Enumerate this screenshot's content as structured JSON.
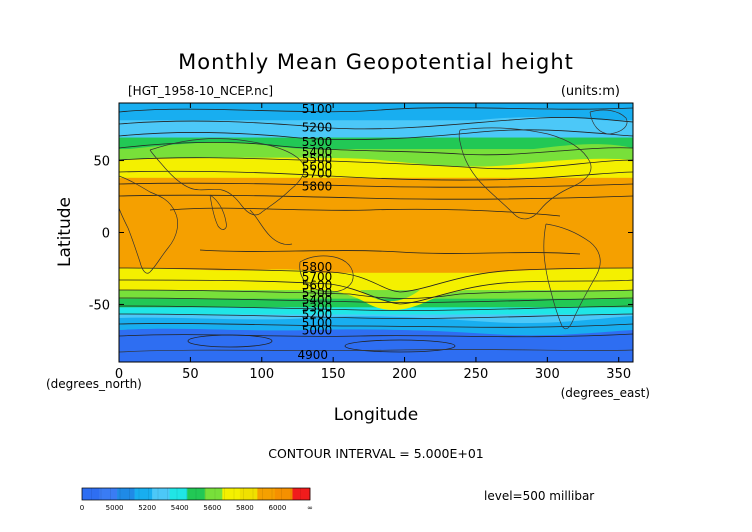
{
  "title": "Monthly Mean Geopotential height",
  "file_label": "[HGT_1958-10_NCEP.nc]",
  "units_label": "(units:m)",
  "x_axis": {
    "label": "Longitude",
    "ticks": [
      "0",
      "50",
      "100",
      "150",
      "200",
      "250",
      "300",
      "350"
    ],
    "tick_values": [
      0,
      50,
      100,
      150,
      200,
      250,
      300,
      350
    ],
    "range": [
      0,
      360
    ],
    "unit_note": "(degrees_east)"
  },
  "y_axis": {
    "label": "Latitude",
    "ticks": [
      "50",
      "0",
      "-50"
    ],
    "tick_values": [
      50,
      0,
      -50
    ],
    "range": [
      -90,
      90
    ],
    "unit_note": "(degrees_north)"
  },
  "contour_interval": "CONTOUR INTERVAL = 5.000E+01",
  "level": "level=500 millibar",
  "colors": {
    "c4900": "#2e6ef2",
    "c5000": "#1f8ae6",
    "c5100": "#18aef0",
    "c5200": "#4cc8f8",
    "c5300": "#20e6e6",
    "c5400": "#22c855",
    "c5500": "#78e03a",
    "c5600": "#f4f000",
    "c5700": "#f0e000",
    "c5800": "#f5a000",
    "c6000": "#f01c1c"
  },
  "colorbar": {
    "labels": [
      "0",
      "5000",
      "5200",
      "5400",
      "5600",
      "5800",
      "6000",
      "∞"
    ],
    "segments": [
      {
        "from": 0,
        "to": 4950,
        "color": "#2e6ef2"
      },
      {
        "from": 4950,
        "to": 5000,
        "color": "#3a7cf4"
      },
      {
        "from": 5000,
        "to": 5100,
        "color": "#1f8ae6"
      },
      {
        "from": 5100,
        "to": 5200,
        "color": "#18aef0"
      },
      {
        "from": 5200,
        "to": 5300,
        "color": "#4cc8f8"
      },
      {
        "from": 5300,
        "to": 5400,
        "color": "#20e6e6"
      },
      {
        "from": 5400,
        "to": 5500,
        "color": "#22c855"
      },
      {
        "from": 5500,
        "to": 5600,
        "color": "#78e03a"
      },
      {
        "from": 5600,
        "to": 5700,
        "color": "#f4f000"
      },
      {
        "from": 5700,
        "to": 5800,
        "color": "#f0e000"
      },
      {
        "from": 5800,
        "to": 5900,
        "color": "#f5a000"
      },
      {
        "from": 5900,
        "to": 6000,
        "color": "#f59000"
      },
      {
        "from": 6000,
        "to": 6100,
        "color": "#f01c1c"
      }
    ]
  },
  "chart_data": {
    "type": "heatmap",
    "title": "Monthly Mean Geopotential height",
    "variable": "HGT",
    "level": "level=500 millibar",
    "xlabel": "Longitude",
    "ylabel": "Latitude",
    "xlim": [
      0,
      360
    ],
    "ylim": [
      -90,
      90
    ],
    "contour_interval": 50,
    "zonal_bands": [
      {
        "lat_from": 90,
        "lat_to": 78,
        "value": 5100,
        "color": "#18aef0"
      },
      {
        "lat_from": 78,
        "lat_to": 66,
        "value": 5200,
        "color": "#4cc8f8"
      },
      {
        "lat_from": 66,
        "lat_to": 58,
        "value": 5400,
        "color": "#22c855"
      },
      {
        "lat_from": 58,
        "lat_to": 52,
        "value": 5500,
        "color": "#78e03a"
      },
      {
        "lat_from": 52,
        "lat_to": 38,
        "value": 5700,
        "color": "#f4f000"
      },
      {
        "lat_from": 38,
        "lat_to": -28,
        "value": 5850,
        "color": "#f5a000"
      },
      {
        "lat_from": -28,
        "lat_to": -40,
        "value": 5700,
        "color": "#f4f000"
      },
      {
        "lat_from": -40,
        "lat_to": -46,
        "value": 5500,
        "color": "#78e03a"
      },
      {
        "lat_from": -46,
        "lat_to": -52,
        "value": 5400,
        "color": "#22c855"
      },
      {
        "lat_from": -52,
        "lat_to": -57,
        "value": 5300,
        "color": "#20e6e6"
      },
      {
        "lat_from": -57,
        "lat_to": -63,
        "value": 5200,
        "color": "#4cc8f8"
      },
      {
        "lat_from": -63,
        "lat_to": -68,
        "value": 5100,
        "color": "#18aef0"
      },
      {
        "lat_from": -68,
        "lat_to": -90,
        "value": 4950,
        "color": "#2e6ef2"
      }
    ],
    "contour_labels": [
      {
        "text": "5100",
        "lon": 128,
        "lat": 86
      },
      {
        "text": "5200",
        "lon": 128,
        "lat": 73
      },
      {
        "text": "5300",
        "lon": 128,
        "lat": 63
      },
      {
        "text": "5400",
        "lon": 128,
        "lat": 56
      },
      {
        "text": "5500",
        "lon": 128,
        "lat": 51
      },
      {
        "text": "5600",
        "lon": 128,
        "lat": 46
      },
      {
        "text": "5700",
        "lon": 128,
        "lat": 41
      },
      {
        "text": "5800",
        "lon": 128,
        "lat": 32
      },
      {
        "text": "5800",
        "lon": 128,
        "lat": -24
      },
      {
        "text": "5700",
        "lon": 128,
        "lat": -31
      },
      {
        "text": "5600",
        "lon": 128,
        "lat": -37
      },
      {
        "text": "5500",
        "lon": 128,
        "lat": -42
      },
      {
        "text": "5400",
        "lon": 128,
        "lat": -47
      },
      {
        "text": "5300",
        "lon": 128,
        "lat": -52
      },
      {
        "text": "5200",
        "lon": 128,
        "lat": -57
      },
      {
        "text": "5100",
        "lon": 128,
        "lat": -63
      },
      {
        "text": "5000",
        "lon": 128,
        "lat": -68
      },
      {
        "text": "4900",
        "lon": 125,
        "lat": -85
      }
    ]
  }
}
